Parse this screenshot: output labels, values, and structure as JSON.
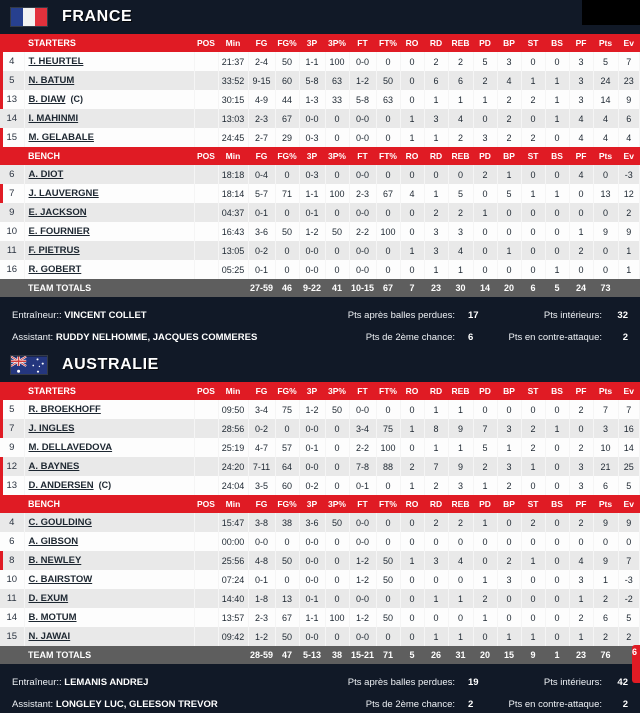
{
  "columns": [
    "POS",
    "Min",
    "FG",
    "FG%",
    "3P",
    "3P%",
    "FT",
    "FT%",
    "RO",
    "RD",
    "REB",
    "PD",
    "BP",
    "ST",
    "BS",
    "PF",
    "Pts",
    "Ev"
  ],
  "colors": {
    "accent_red": "#e01b24",
    "page_bg": "#111927",
    "alt_row": "#e9e9e9",
    "totals_bg": "#5e5e5e"
  },
  "edge_badge": {
    "text": "6"
  },
  "teams": [
    {
      "name": "FRANCE",
      "starters_label": "STARTERS",
      "bench_label": "BENCH",
      "totals_label": "TEAM TOTALS",
      "starters": [
        {
          "num": "4",
          "name": "T. HEURTEL",
          "captain": false,
          "oncourt": true,
          "stats": [
            "",
            "21:37",
            "2-4",
            "50",
            "1-1",
            "100",
            "0-0",
            "0",
            "0",
            "2",
            "2",
            "5",
            "3",
            "0",
            "0",
            "3",
            "5",
            "7"
          ]
        },
        {
          "num": "5",
          "name": "N. BATUM",
          "captain": false,
          "oncourt": true,
          "stats": [
            "",
            "33:52",
            "9-15",
            "60",
            "5-8",
            "63",
            "1-2",
            "50",
            "0",
            "6",
            "6",
            "2",
            "4",
            "1",
            "1",
            "3",
            "24",
            "23"
          ]
        },
        {
          "num": "13",
          "name": "B. DIAW",
          "captain": true,
          "oncourt": true,
          "stats": [
            "",
            "30:15",
            "4-9",
            "44",
            "1-3",
            "33",
            "5-8",
            "63",
            "0",
            "1",
            "1",
            "1",
            "2",
            "2",
            "1",
            "3",
            "14",
            "9"
          ]
        },
        {
          "num": "14",
          "name": "I. MAHINMI",
          "captain": false,
          "oncourt": false,
          "stats": [
            "",
            "13:03",
            "2-3",
            "67",
            "0-0",
            "0",
            "0-0",
            "0",
            "1",
            "3",
            "4",
            "0",
            "2",
            "0",
            "1",
            "4",
            "4",
            "6"
          ]
        },
        {
          "num": "15",
          "name": "M. GELABALE",
          "captain": false,
          "oncourt": true,
          "stats": [
            "",
            "24:45",
            "2-7",
            "29",
            "0-3",
            "0",
            "0-0",
            "0",
            "1",
            "1",
            "2",
            "3",
            "2",
            "2",
            "0",
            "4",
            "4",
            "4"
          ]
        }
      ],
      "bench": [
        {
          "num": "6",
          "name": "A. DIOT",
          "captain": false,
          "oncourt": false,
          "stats": [
            "",
            "18:18",
            "0-4",
            "0",
            "0-3",
            "0",
            "0-0",
            "0",
            "0",
            "0",
            "0",
            "2",
            "1",
            "0",
            "0",
            "4",
            "0",
            "-3"
          ]
        },
        {
          "num": "7",
          "name": "J. LAUVERGNE",
          "captain": false,
          "oncourt": true,
          "stats": [
            "",
            "18:14",
            "5-7",
            "71",
            "1-1",
            "100",
            "2-3",
            "67",
            "4",
            "1",
            "5",
            "0",
            "5",
            "1",
            "1",
            "0",
            "13",
            "12"
          ]
        },
        {
          "num": "9",
          "name": "E. JACKSON",
          "captain": false,
          "oncourt": false,
          "stats": [
            "",
            "04:37",
            "0-1",
            "0",
            "0-1",
            "0",
            "0-0",
            "0",
            "0",
            "2",
            "2",
            "1",
            "0",
            "0",
            "0",
            "0",
            "0",
            "2"
          ]
        },
        {
          "num": "10",
          "name": "E. FOURNIER",
          "captain": false,
          "oncourt": false,
          "stats": [
            "",
            "16:43",
            "3-6",
            "50",
            "1-2",
            "50",
            "2-2",
            "100",
            "0",
            "3",
            "3",
            "0",
            "0",
            "0",
            "0",
            "1",
            "9",
            "9"
          ]
        },
        {
          "num": "11",
          "name": "F. PIETRUS",
          "captain": false,
          "oncourt": false,
          "stats": [
            "",
            "13:05",
            "0-2",
            "0",
            "0-0",
            "0",
            "0-0",
            "0",
            "1",
            "3",
            "4",
            "0",
            "1",
            "0",
            "0",
            "2",
            "0",
            "1"
          ]
        },
        {
          "num": "16",
          "name": "R. GOBERT",
          "captain": false,
          "oncourt": false,
          "stats": [
            "",
            "05:25",
            "0-1",
            "0",
            "0-0",
            "0",
            "0-0",
            "0",
            "0",
            "1",
            "1",
            "0",
            "0",
            "0",
            "1",
            "0",
            "0",
            "1"
          ]
        }
      ],
      "totals": [
        "",
        "",
        "27-59",
        "46",
        "9-22",
        "41",
        "10-15",
        "67",
        "7",
        "23",
        "30",
        "14",
        "20",
        "6",
        "5",
        "24",
        "73",
        ""
      ],
      "coach_label": "Entraîneur::",
      "coach": "VINCENT COLLET",
      "assistant_label": "Assistant:",
      "assistant": "RUDDY NELHOMME, JACQUES COMMERES",
      "stats_extra": [
        {
          "label": "Pts après balles perdues:",
          "value": "17"
        },
        {
          "label": "Pts de 2ème chance:",
          "value": "6"
        },
        {
          "label": "Pts intérieurs:",
          "value": "32"
        },
        {
          "label": "Pts en contre-attaque:",
          "value": "2"
        }
      ]
    },
    {
      "name": "AUSTRALIE",
      "starters_label": "STARTERS",
      "bench_label": "BENCH",
      "totals_label": "TEAM TOTALS",
      "starters": [
        {
          "num": "5",
          "name": "R. BROEKHOFF",
          "captain": false,
          "oncourt": true,
          "stats": [
            "",
            "09:50",
            "3-4",
            "75",
            "1-2",
            "50",
            "0-0",
            "0",
            "0",
            "1",
            "1",
            "0",
            "0",
            "0",
            "0",
            "2",
            "7",
            "7"
          ]
        },
        {
          "num": "7",
          "name": "J. INGLES",
          "captain": false,
          "oncourt": true,
          "stats": [
            "",
            "28:56",
            "0-2",
            "0",
            "0-0",
            "0",
            "3-4",
            "75",
            "1",
            "8",
            "9",
            "7",
            "3",
            "2",
            "1",
            "0",
            "3",
            "16"
          ]
        },
        {
          "num": "9",
          "name": "M. DELLAVEDOVA",
          "captain": false,
          "oncourt": false,
          "stats": [
            "",
            "25:19",
            "4-7",
            "57",
            "0-1",
            "0",
            "2-2",
            "100",
            "0",
            "1",
            "1",
            "5",
            "1",
            "2",
            "0",
            "2",
            "10",
            "14"
          ]
        },
        {
          "num": "12",
          "name": "A. BAYNES",
          "captain": false,
          "oncourt": true,
          "stats": [
            "",
            "24:20",
            "7-11",
            "64",
            "0-0",
            "0",
            "7-8",
            "88",
            "2",
            "7",
            "9",
            "2",
            "3",
            "1",
            "0",
            "3",
            "21",
            "25"
          ]
        },
        {
          "num": "13",
          "name": "D. ANDERSEN",
          "captain": true,
          "oncourt": true,
          "stats": [
            "",
            "24:04",
            "3-5",
            "60",
            "0-2",
            "0",
            "0-1",
            "0",
            "1",
            "2",
            "3",
            "1",
            "2",
            "0",
            "0",
            "3",
            "6",
            "5"
          ]
        }
      ],
      "bench": [
        {
          "num": "4",
          "name": "C. GOULDING",
          "captain": false,
          "oncourt": false,
          "stats": [
            "",
            "15:47",
            "3-8",
            "38",
            "3-6",
            "50",
            "0-0",
            "0",
            "0",
            "2",
            "2",
            "1",
            "0",
            "2",
            "0",
            "2",
            "9",
            "9"
          ]
        },
        {
          "num": "6",
          "name": "A. GIBSON",
          "captain": false,
          "oncourt": false,
          "stats": [
            "",
            "00:00",
            "0-0",
            "0",
            "0-0",
            "0",
            "0-0",
            "0",
            "0",
            "0",
            "0",
            "0",
            "0",
            "0",
            "0",
            "0",
            "0",
            "0"
          ]
        },
        {
          "num": "8",
          "name": "B. NEWLEY",
          "captain": false,
          "oncourt": true,
          "stats": [
            "",
            "25:56",
            "4-8",
            "50",
            "0-0",
            "0",
            "1-2",
            "50",
            "1",
            "3",
            "4",
            "0",
            "2",
            "1",
            "0",
            "4",
            "9",
            "7"
          ]
        },
        {
          "num": "10",
          "name": "C. BAIRSTOW",
          "captain": false,
          "oncourt": false,
          "stats": [
            "",
            "07:24",
            "0-1",
            "0",
            "0-0",
            "0",
            "1-2",
            "50",
            "0",
            "0",
            "0",
            "1",
            "3",
            "0",
            "0",
            "3",
            "1",
            "-3"
          ]
        },
        {
          "num": "11",
          "name": "D. EXUM",
          "captain": false,
          "oncourt": false,
          "stats": [
            "",
            "14:40",
            "1-8",
            "13",
            "0-1",
            "0",
            "0-0",
            "0",
            "0",
            "1",
            "1",
            "2",
            "0",
            "0",
            "0",
            "1",
            "2",
            "-2"
          ]
        },
        {
          "num": "14",
          "name": "B. MOTUM",
          "captain": false,
          "oncourt": false,
          "stats": [
            "",
            "13:57",
            "2-3",
            "67",
            "1-1",
            "100",
            "1-2",
            "50",
            "0",
            "0",
            "0",
            "1",
            "0",
            "0",
            "0",
            "2",
            "6",
            "5"
          ]
        },
        {
          "num": "15",
          "name": "N. JAWAI",
          "captain": false,
          "oncourt": false,
          "stats": [
            "",
            "09:42",
            "1-2",
            "50",
            "0-0",
            "0",
            "0-0",
            "0",
            "0",
            "1",
            "1",
            "0",
            "1",
            "1",
            "0",
            "1",
            "2",
            "2"
          ]
        }
      ],
      "totals": [
        "",
        "",
        "28-59",
        "47",
        "5-13",
        "38",
        "15-21",
        "71",
        "5",
        "26",
        "31",
        "20",
        "15",
        "9",
        "1",
        "23",
        "76",
        ""
      ],
      "coach_label": "Entraîneur::",
      "coach": "LEMANIS ANDREJ",
      "assistant_label": "Assistant:",
      "assistant": "LONGLEY LUC, GLEESON TREVOR",
      "stats_extra": [
        {
          "label": "Pts après balles perdues:",
          "value": "19"
        },
        {
          "label": "Pts de 2ème chance:",
          "value": "2"
        },
        {
          "label": "Pts intérieurs:",
          "value": "42"
        },
        {
          "label": "Pts en contre-attaque:",
          "value": "2"
        }
      ]
    }
  ]
}
